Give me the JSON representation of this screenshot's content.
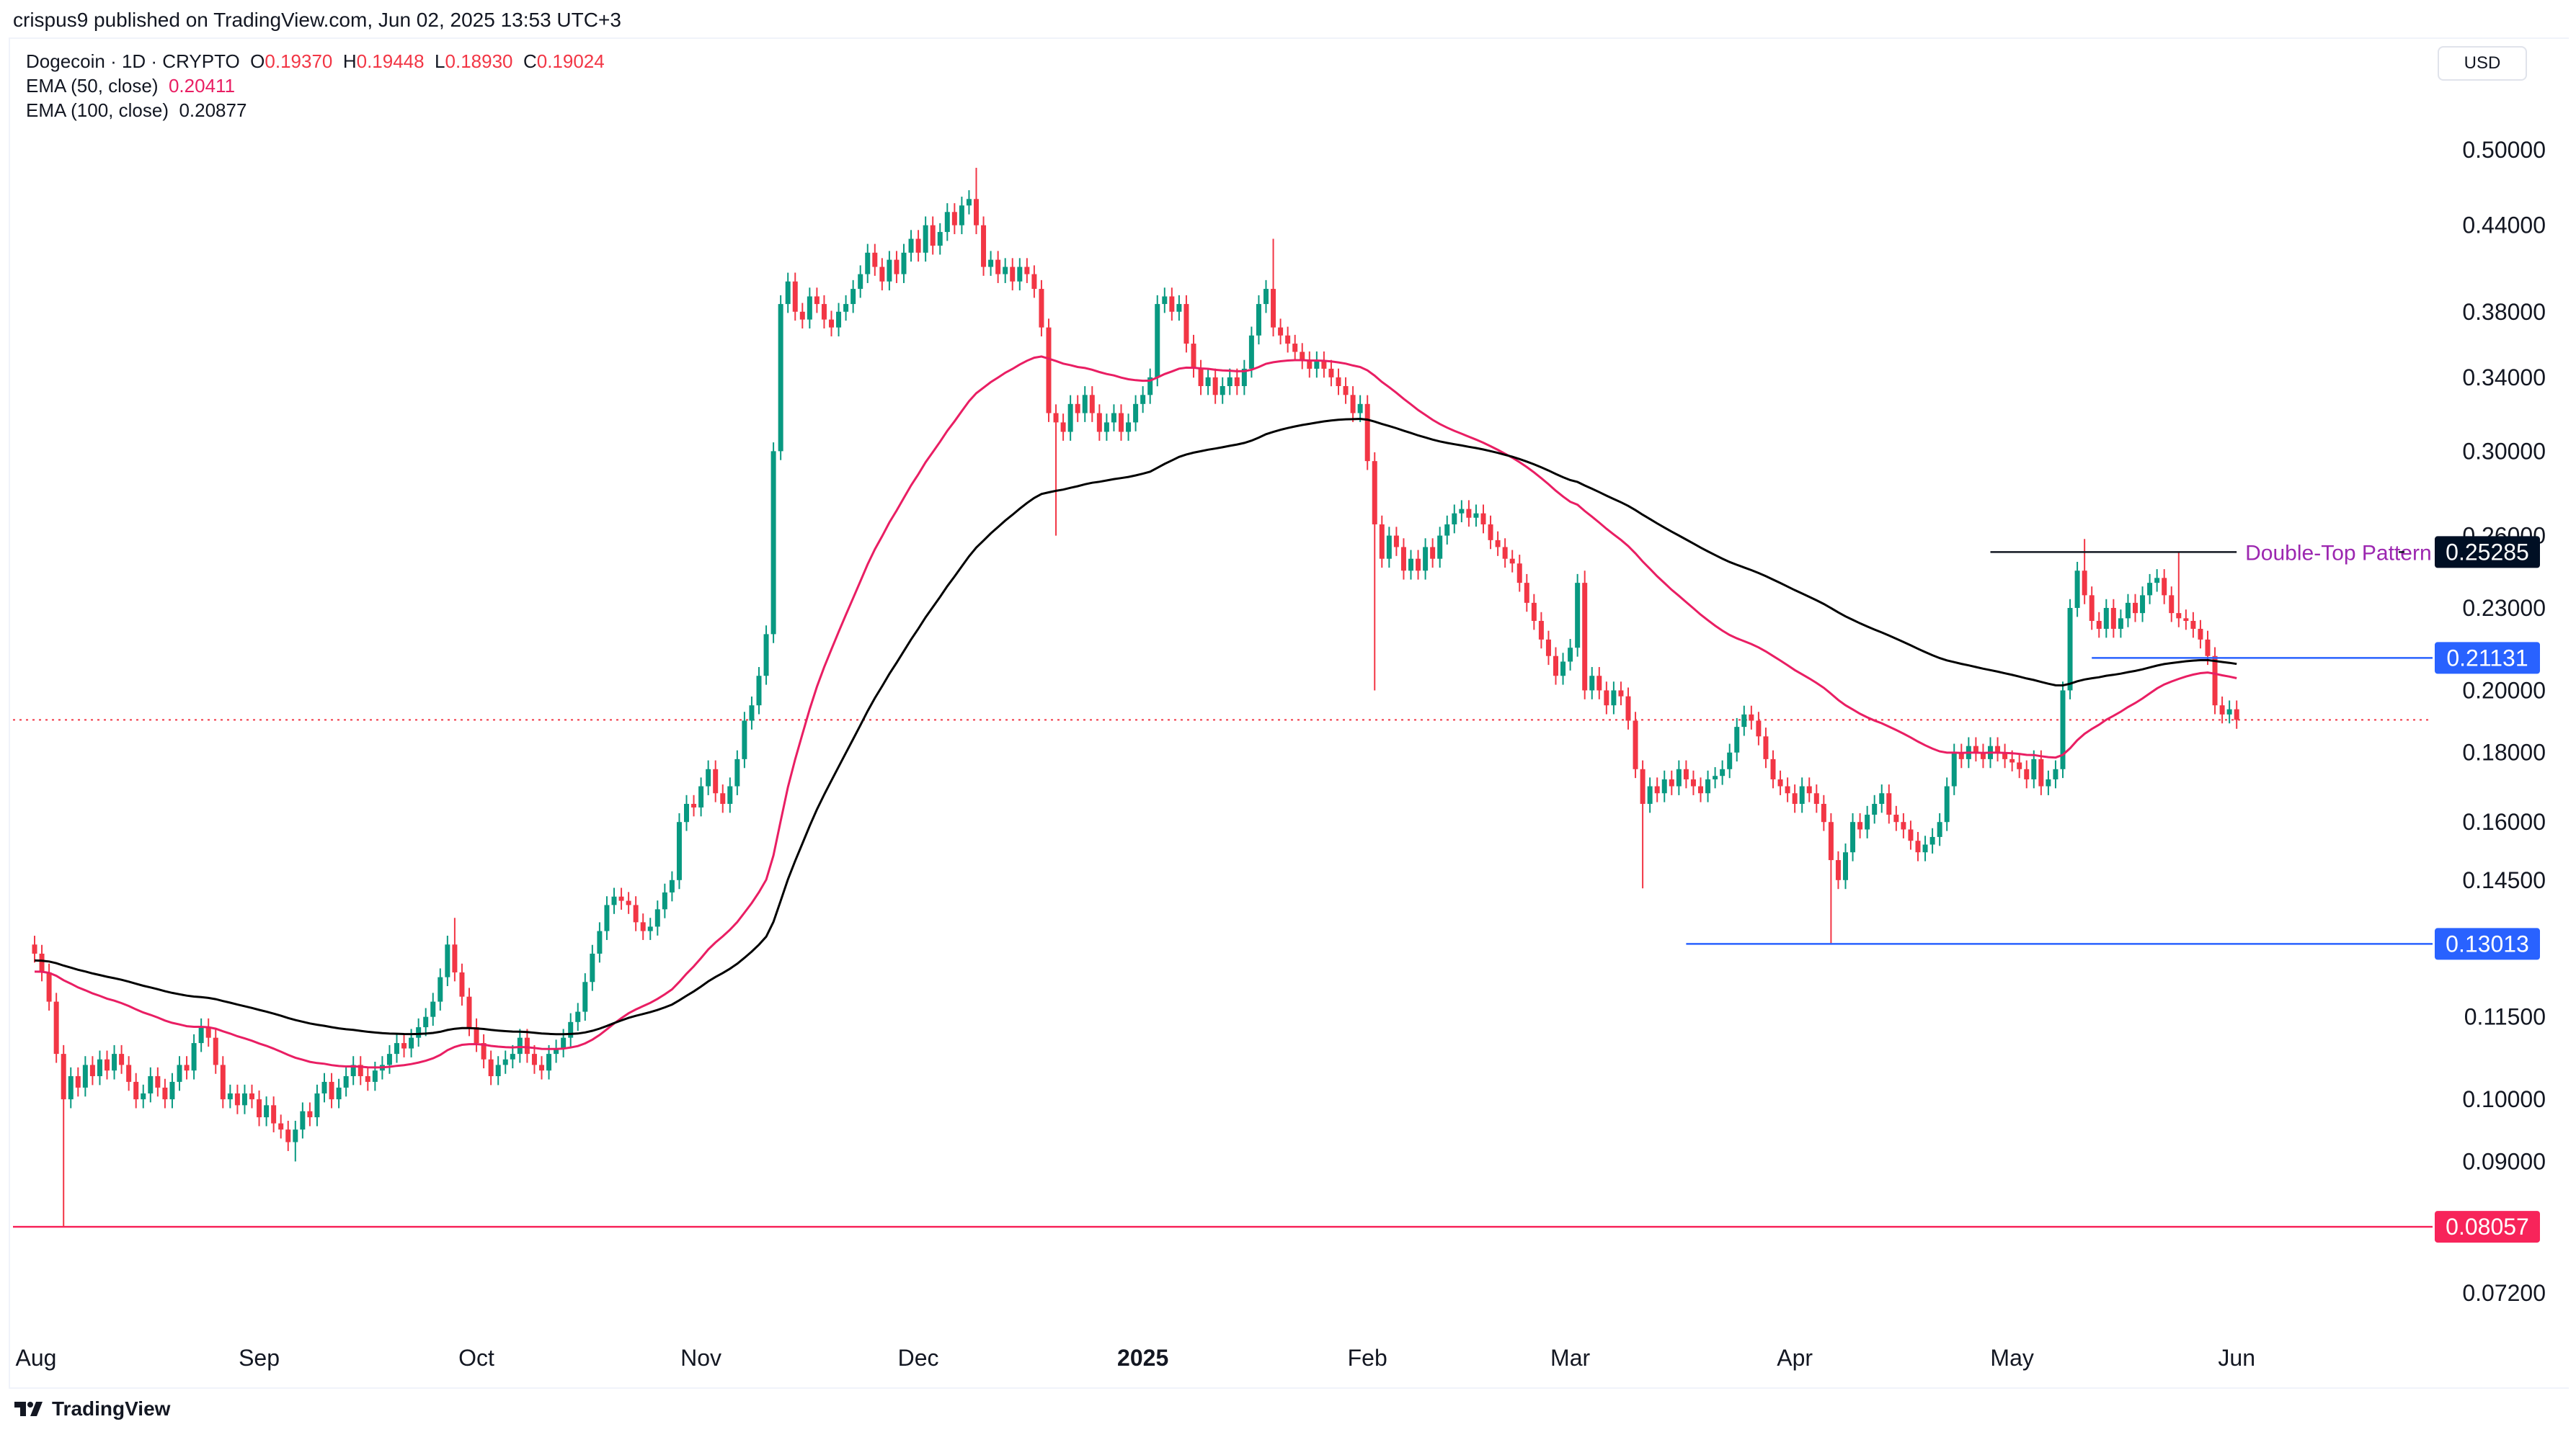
{
  "header": {
    "published": "crispus9 published on TradingView.com, Jun 02, 2025 13:53 UTC+3",
    "symbol": "Dogecoin · 1D · CRYPTO",
    "ohlc": {
      "o_label": "O",
      "o": "0.19370",
      "h_label": "H",
      "h": "0.19448",
      "l_label": "L",
      "l": "0.18930",
      "c_label": "C",
      "c": "0.19024"
    },
    "ema50_label": "EMA (50, close)",
    "ema50_value": "0.20411",
    "ema100_label": "EMA (100, close)",
    "ema100_value": "0.20877",
    "currency": "USD"
  },
  "footer": {
    "brand": "TradingView"
  },
  "colors": {
    "up": "#089981",
    "down": "#f23645",
    "ema50": "#e91e63",
    "ema100": "#000000",
    "blue": "#2962ff",
    "tag_dark": "#000f24",
    "tag_red": "#f7245a",
    "annotation": "#9c27b0"
  },
  "chart_data": {
    "type": "candlestick",
    "title": "Dogecoin · 1D · CRYPTO",
    "scale": "log",
    "ylim": [
      0.066,
      0.56
    ],
    "start_date": "2024-08-01",
    "first_open": 0.13,
    "closes": [
      0.128,
      0.124,
      0.118,
      0.108,
      0.1,
      0.104,
      0.102,
      0.106,
      0.104,
      0.107,
      0.105,
      0.108,
      0.106,
      0.103,
      0.1,
      0.101,
      0.104,
      0.102,
      0.1,
      0.103,
      0.106,
      0.105,
      0.11,
      0.113,
      0.111,
      0.106,
      0.1,
      0.101,
      0.099,
      0.101,
      0.1,
      0.097,
      0.099,
      0.096,
      0.095,
      0.093,
      0.095,
      0.098,
      0.097,
      0.101,
      0.103,
      0.1,
      0.102,
      0.104,
      0.106,
      0.104,
      0.103,
      0.105,
      0.106,
      0.108,
      0.11,
      0.109,
      0.111,
      0.113,
      0.115,
      0.118,
      0.123,
      0.13,
      0.124,
      0.119,
      0.113,
      0.11,
      0.107,
      0.104,
      0.106,
      0.107,
      0.108,
      0.111,
      0.108,
      0.106,
      0.105,
      0.108,
      0.109,
      0.111,
      0.114,
      0.116,
      0.122,
      0.128,
      0.133,
      0.139,
      0.141,
      0.14,
      0.139,
      0.135,
      0.133,
      0.134,
      0.138,
      0.142,
      0.145,
      0.16,
      0.165,
      0.164,
      0.17,
      0.175,
      0.168,
      0.165,
      0.17,
      0.178,
      0.19,
      0.195,
      0.205,
      0.22,
      0.3,
      0.385,
      0.4,
      0.38,
      0.375,
      0.39,
      0.385,
      0.375,
      0.37,
      0.38,
      0.385,
      0.395,
      0.405,
      0.42,
      0.41,
      0.4,
      0.415,
      0.405,
      0.42,
      0.43,
      0.42,
      0.44,
      0.425,
      0.435,
      0.45,
      0.44,
      0.455,
      0.46,
      0.44,
      0.41,
      0.415,
      0.405,
      0.41,
      0.4,
      0.41,
      0.405,
      0.395,
      0.37,
      0.32,
      0.315,
      0.31,
      0.325,
      0.32,
      0.33,
      0.32,
      0.31,
      0.315,
      0.32,
      0.31,
      0.315,
      0.325,
      0.33,
      0.34,
      0.385,
      0.39,
      0.38,
      0.385,
      0.36,
      0.345,
      0.335,
      0.34,
      0.33,
      0.335,
      0.34,
      0.335,
      0.345,
      0.365,
      0.385,
      0.395,
      0.37,
      0.365,
      0.36,
      0.355,
      0.35,
      0.345,
      0.35,
      0.345,
      0.34,
      0.335,
      0.33,
      0.32,
      0.325,
      0.295,
      0.265,
      0.25,
      0.26,
      0.255,
      0.245,
      0.25,
      0.245,
      0.255,
      0.25,
      0.26,
      0.265,
      0.27,
      0.272,
      0.268,
      0.27,
      0.265,
      0.258,
      0.255,
      0.25,
      0.248,
      0.24,
      0.232,
      0.225,
      0.218,
      0.212,
      0.205,
      0.21,
      0.215,
      0.24,
      0.2,
      0.205,
      0.2,
      0.195,
      0.2,
      0.198,
      0.19,
      0.175,
      0.165,
      0.17,
      0.168,
      0.172,
      0.17,
      0.175,
      0.172,
      0.17,
      0.168,
      0.172,
      0.173,
      0.175,
      0.18,
      0.188,
      0.192,
      0.19,
      0.185,
      0.178,
      0.172,
      0.17,
      0.168,
      0.165,
      0.17,
      0.168,
      0.165,
      0.16,
      0.15,
      0.145,
      0.152,
      0.16,
      0.158,
      0.162,
      0.165,
      0.168,
      0.162,
      0.16,
      0.158,
      0.155,
      0.152,
      0.154,
      0.156,
      0.16,
      0.17,
      0.18,
      0.178,
      0.182,
      0.18,
      0.178,
      0.182,
      0.18,
      0.178,
      0.177,
      0.175,
      0.172,
      0.178,
      0.17,
      0.172,
      0.175,
      0.2,
      0.23,
      0.245,
      0.235,
      0.225,
      0.222,
      0.23,
      0.222,
      0.226,
      0.232,
      0.228,
      0.235,
      0.24,
      0.242,
      0.235,
      0.228,
      0.226,
      0.225,
      0.222,
      0.218,
      0.212,
      0.195,
      0.192,
      0.1937,
      0.19024
    ],
    "wick_pct": 0.015,
    "wick_overrides": [
      {
        "day": 4,
        "low": 0.08057
      },
      {
        "day": 36,
        "low": 0.09
      },
      {
        "day": 58,
        "high": 0.136
      },
      {
        "day": 130,
        "high": 0.485
      },
      {
        "day": 141,
        "low": 0.26
      },
      {
        "day": 171,
        "high": 0.43
      },
      {
        "day": 185,
        "low": 0.2
      },
      {
        "day": 214,
        "high": 0.245
      },
      {
        "day": 222,
        "low": 0.143
      },
      {
        "day": 248,
        "low": 0.13013
      },
      {
        "day": 283,
        "high": 0.2585
      },
      {
        "day": 296,
        "high": 0.25285
      }
    ],
    "ema_seed": {
      "ema50": 0.124,
      "ema100": 0.1265
    },
    "ema": [
      {
        "name": "EMA (50, close)",
        "period": 50
      },
      {
        "name": "EMA (100, close)",
        "period": 100
      }
    ],
    "y_ticks": [
      "0.50000",
      "0.44000",
      "0.38000",
      "0.34000",
      "0.30000",
      "0.26000",
      "0.23000",
      "0.20000",
      "0.18000",
      "0.16000",
      "0.14500",
      "0.11500",
      "0.10000",
      "0.09000",
      "0.07200"
    ],
    "x_ticks": [
      {
        "label": "Aug",
        "day": 0
      },
      {
        "label": "Sep",
        "day": 31
      },
      {
        "label": "Oct",
        "day": 61
      },
      {
        "label": "Nov",
        "day": 92
      },
      {
        "label": "Dec",
        "day": 122
      },
      {
        "label": "2025",
        "day": 153,
        "bold": true
      },
      {
        "label": "Feb",
        "day": 184
      },
      {
        "label": "Mar",
        "day": 212
      },
      {
        "label": "Apr",
        "day": 243
      },
      {
        "label": "May",
        "day": 273
      },
      {
        "label": "Jun",
        "day": 304
      }
    ],
    "levels": [
      {
        "name": "support-low",
        "price": 0.08057,
        "label": "0.08057",
        "color": "#f7245a",
        "from_day": -3
      },
      {
        "name": "support-april",
        "price": 0.13013,
        "label": "0.13013",
        "color": "#2962ff",
        "from_day": 228
      },
      {
        "name": "neckline",
        "price": 0.21131,
        "label": "0.21131",
        "color": "#2962ff",
        "from_day": 284
      }
    ],
    "double_top": {
      "price": 0.25285,
      "label": "0.25285",
      "text": "Double-Top Pattern",
      "from_day": 270,
      "to_day": 303
    },
    "current_price": 0.19024
  }
}
